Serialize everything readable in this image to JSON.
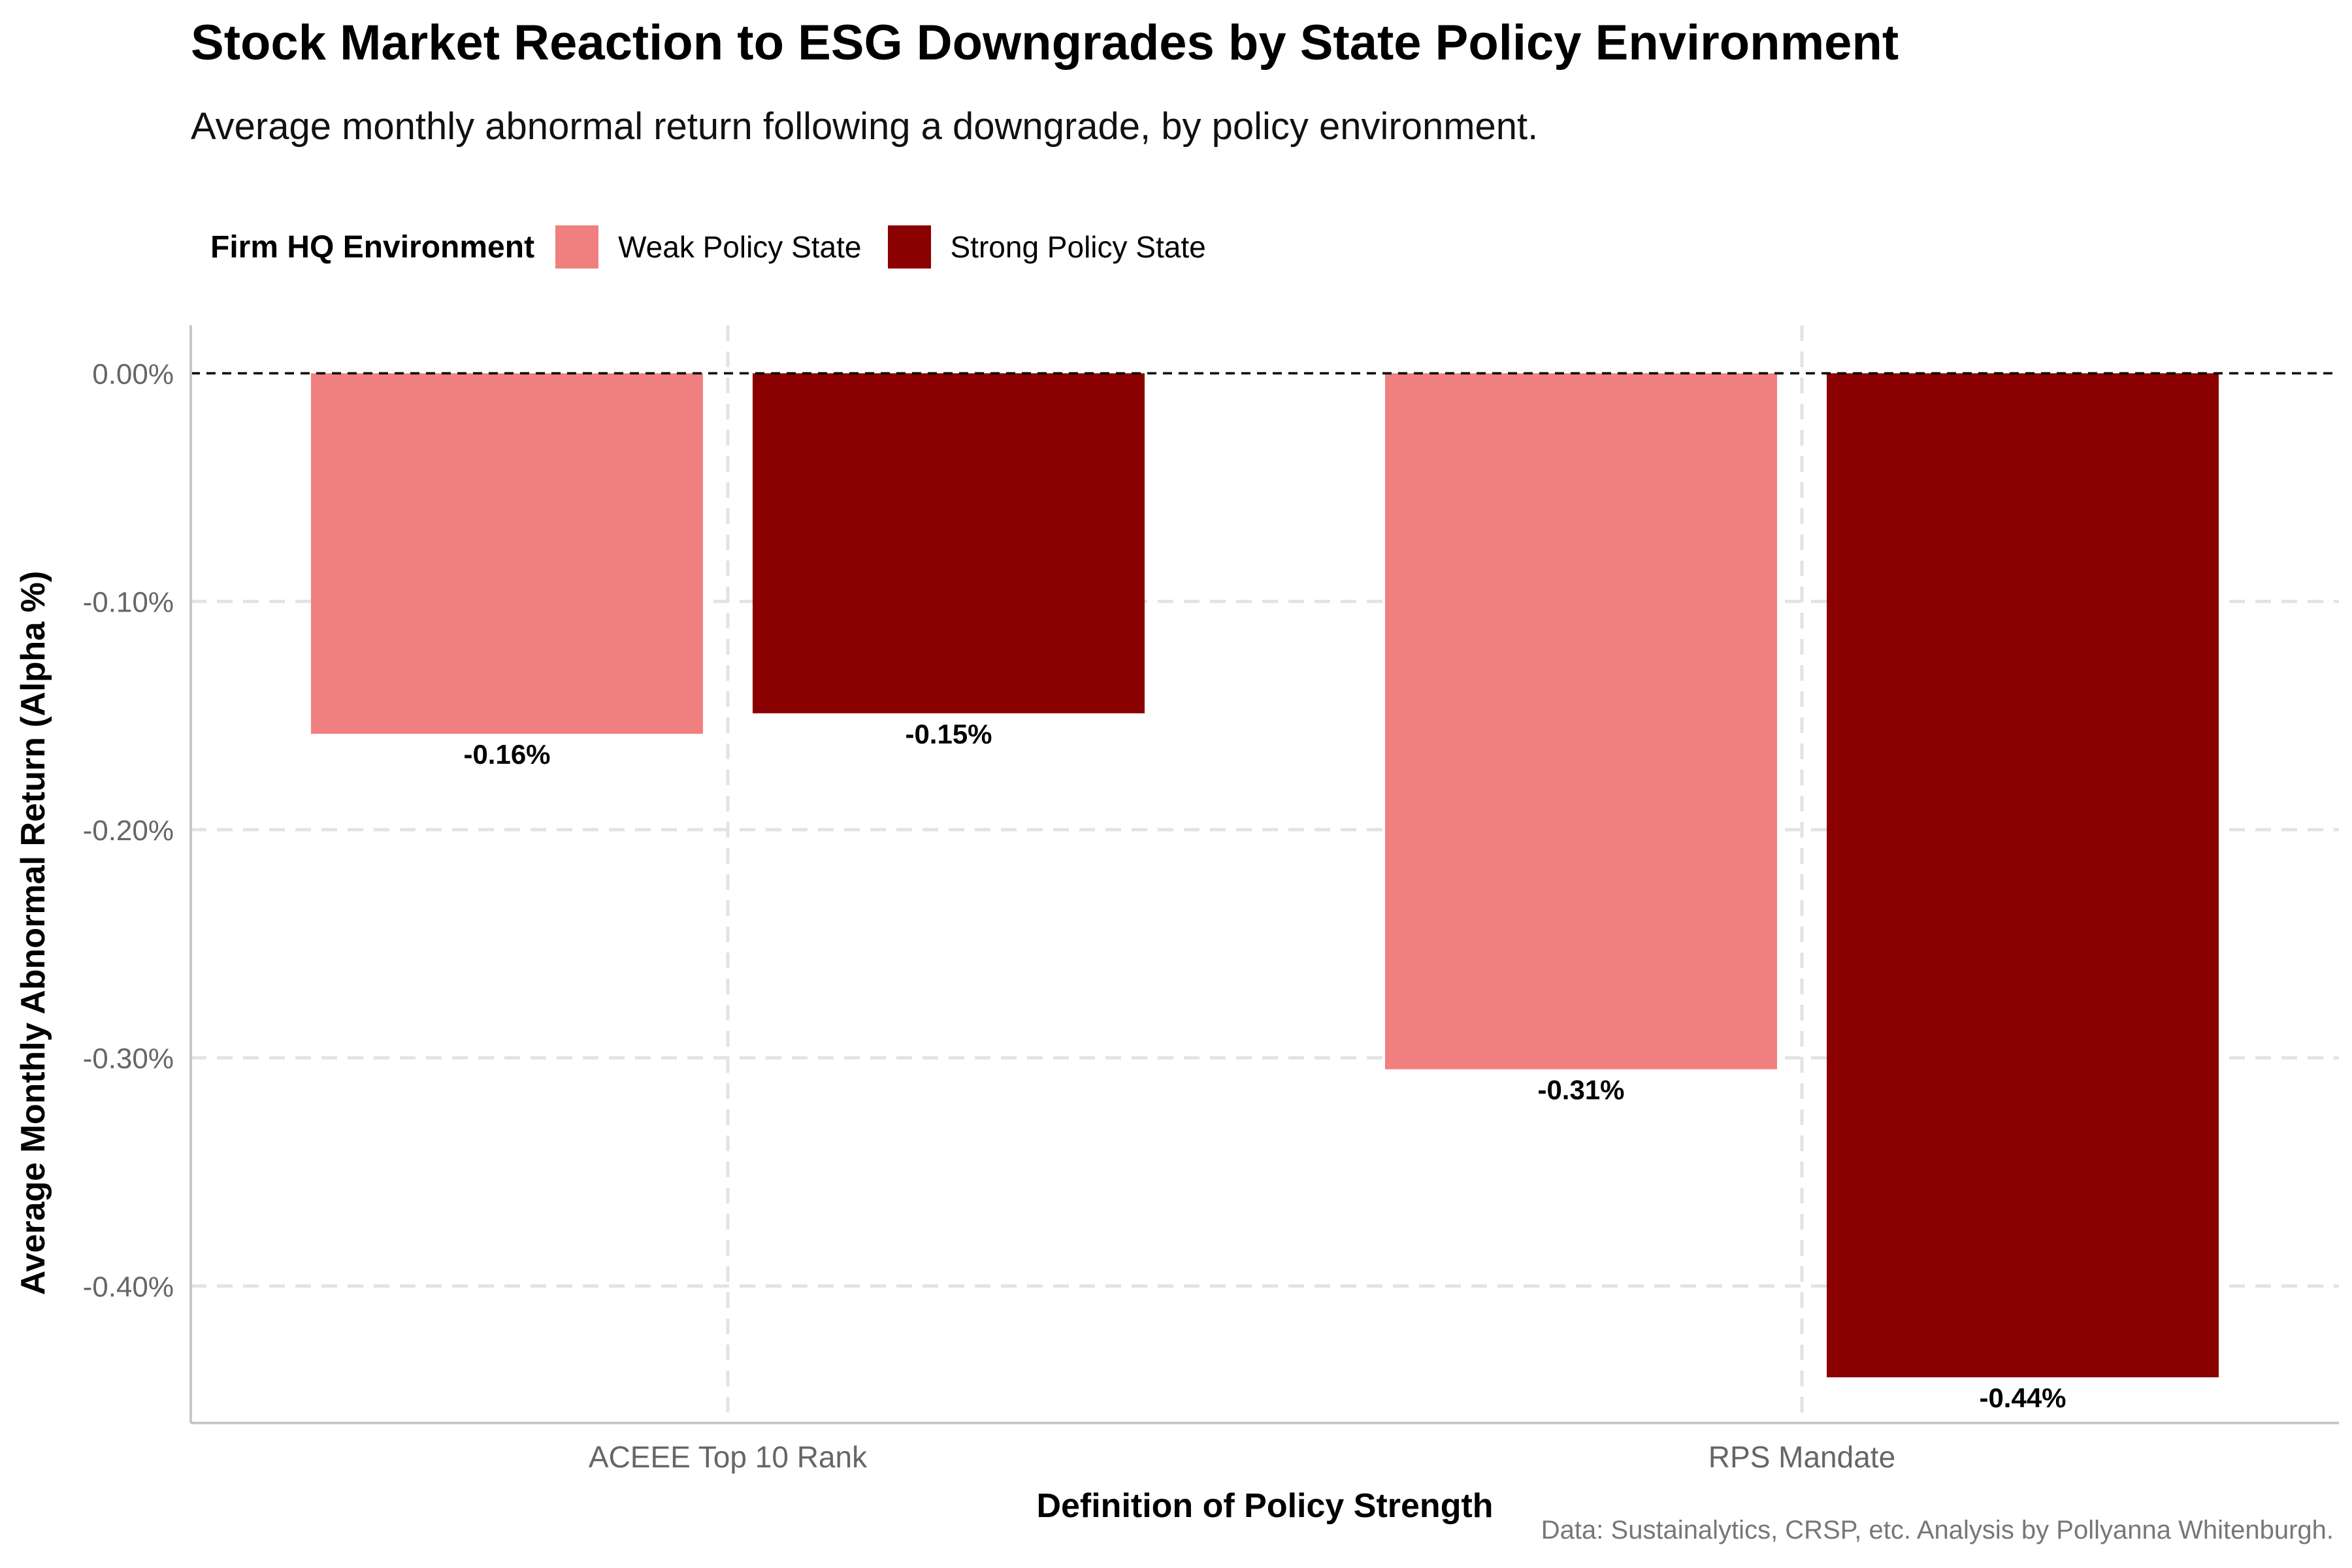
{
  "title": "Stock Market Reaction to ESG Downgrades by State Policy Environment",
  "subtitle": "Average monthly abnormal return following a downgrade, by policy environment.",
  "caption": "Data: Sustainalytics, CRSP, etc. Analysis by Pollyanna Whitenburgh.",
  "legend": {
    "title": "Firm HQ Environment",
    "placement": "top-left"
  },
  "chart_data": {
    "type": "bar",
    "title": "Stock Market Reaction to ESG Downgrades by State Policy Environment",
    "subtitle": "Average monthly abnormal return following a downgrade, by policy environment.",
    "xlabel": "Definition of Policy Strength",
    "ylabel": "Average Monthly Abnormal Return (Alpha %)",
    "categories": [
      "ACEEE Top 10 Rank",
      "RPS Mandate"
    ],
    "series": [
      {
        "name": "Weak Policy State",
        "color": "#F08080",
        "values": [
          -0.158,
          -0.305
        ],
        "labels": [
          "-0.16%",
          "-0.31%"
        ]
      },
      {
        "name": "Strong Policy State",
        "color": "#8B0000",
        "values": [
          -0.149,
          -0.44
        ],
        "labels": [
          "-0.15%",
          "-0.44%"
        ]
      }
    ],
    "yticks": [
      0,
      -0.1,
      -0.2,
      -0.3,
      -0.4
    ],
    "ytick_labels": [
      "0.00%",
      "-0.10%",
      "-0.20%",
      "-0.30%",
      "-0.40%"
    ],
    "ylim": [
      -0.46,
      0.021
    ],
    "reference_line": 0,
    "grid": true,
    "legend_position": "top-left"
  }
}
